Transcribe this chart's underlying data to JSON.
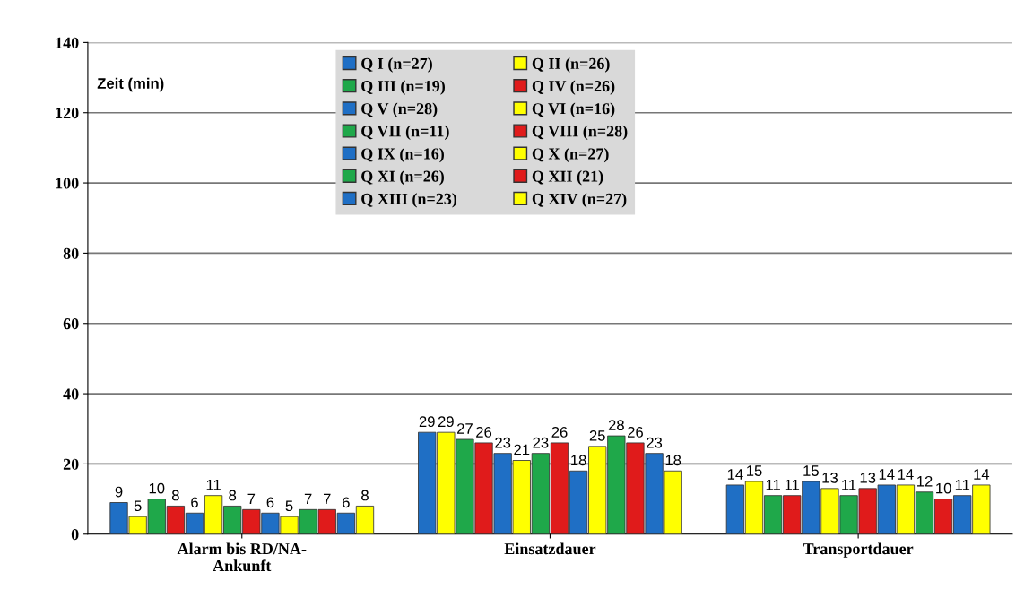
{
  "chart_data": {
    "type": "bar",
    "ylabel": "Zeit (min)",
    "categories": [
      "Alarm bis RD/NA-\nAnkunft",
      "Einsatzdauer",
      "Transportdauer"
    ],
    "ylim": [
      0,
      140
    ],
    "yticks": [
      0,
      20,
      40,
      60,
      80,
      100,
      120,
      140
    ],
    "grid": "y",
    "legend": "top",
    "data_labels": true,
    "series": [
      {
        "name": "Q I (n=27)",
        "color": "#1f6fc5",
        "values": [
          9,
          29,
          14
        ]
      },
      {
        "name": "Q II (n=26)",
        "color": "#ffff00",
        "values": [
          5,
          29,
          15
        ]
      },
      {
        "name": "Q III (n=19)",
        "color": "#1fa84a",
        "values": [
          10,
          27,
          11
        ]
      },
      {
        "name": "Q IV (n=26)",
        "color": "#e01b1b",
        "values": [
          8,
          26,
          11
        ]
      },
      {
        "name": "Q V (n=28)",
        "color": "#1f6fc5",
        "values": [
          6,
          23,
          15
        ]
      },
      {
        "name": "Q VI (n=16)",
        "color": "#ffff00",
        "values": [
          11,
          21,
          13
        ]
      },
      {
        "name": "Q VII (n=11)",
        "color": "#1fa84a",
        "values": [
          8,
          23,
          11
        ]
      },
      {
        "name": "Q VIII (n=28)",
        "color": "#e01b1b",
        "values": [
          7,
          26,
          13
        ]
      },
      {
        "name": "Q IX (n=16)",
        "color": "#1f6fc5",
        "values": [
          6,
          18,
          14
        ]
      },
      {
        "name": "Q X (n=27)",
        "color": "#ffff00",
        "values": [
          5,
          25,
          14
        ]
      },
      {
        "name": "Q XI (n=26)",
        "color": "#1fa84a",
        "values": [
          7,
          28,
          12
        ]
      },
      {
        "name": "Q XII (21)",
        "color": "#e01b1b",
        "values": [
          7,
          26,
          10
        ]
      },
      {
        "name": "Q XIII (n=23)",
        "color": "#1f6fc5",
        "values": [
          6,
          23,
          11
        ]
      },
      {
        "name": "Q XIV (n=27)",
        "color": "#ffff00",
        "values": [
          8,
          18,
          14
        ]
      }
    ]
  }
}
